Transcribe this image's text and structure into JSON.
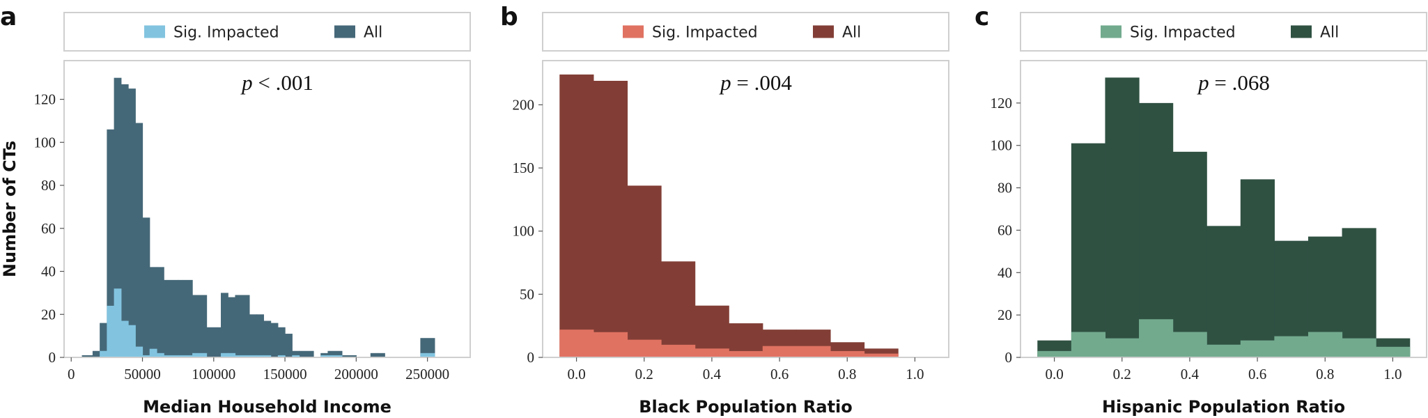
{
  "chart_data": [
    {
      "panel_letter": "a",
      "type": "histogram",
      "title": "",
      "xlabel": "Median Household Income",
      "ylabel": "Number of CTs",
      "annotation": {
        "italic": "p",
        "rest": " < .001"
      },
      "legend": {
        "placement": "top (outside, above plot)",
        "entries": [
          "Sig. Impacted",
          "All"
        ]
      },
      "colors": {
        "sig": "#82c4e0",
        "all": "#456878"
      },
      "xlim": [
        -5000,
        280000
      ],
      "ylim": [
        0,
        138
      ],
      "xticks": [
        0,
        50000,
        100000,
        150000,
        200000,
        250000
      ],
      "xtick_labels": [
        "0",
        "50000",
        "100000",
        "150000",
        "200000",
        "250000"
      ],
      "yticks": [
        0,
        20,
        40,
        60,
        80,
        100,
        120
      ],
      "ytick_labels": [
        "0",
        "20",
        "40",
        "60",
        "80",
        "100",
        "120"
      ],
      "bin_edges": [
        7500,
        15000,
        20000,
        25000,
        30000,
        35000,
        40000,
        45000,
        50000,
        55000,
        60000,
        65000,
        75000,
        85000,
        95000,
        105000,
        110000,
        115000,
        125000,
        130000,
        135000,
        140000,
        145000,
        150000,
        155000,
        160000,
        170000,
        175000,
        180000,
        190000,
        200000,
        210000,
        215000,
        220000,
        225000,
        230000,
        245000,
        255000
      ],
      "series": [
        {
          "name": "All",
          "values": [
            1,
            3,
            16,
            106,
            130,
            127,
            125,
            109,
            65,
            42,
            42,
            36,
            36,
            29,
            14,
            30,
            28,
            29,
            20,
            20,
            17,
            16,
            14,
            11,
            3,
            3,
            0,
            2,
            3,
            1,
            0,
            2,
            2,
            0,
            0,
            0,
            9
          ]
        },
        {
          "name": "Sig. Impacted",
          "values": [
            0,
            0,
            3,
            24,
            32,
            17,
            15,
            5,
            1,
            4,
            2,
            1,
            1,
            2,
            0,
            2,
            2,
            1,
            1,
            1,
            1,
            0,
            1,
            0,
            1,
            0,
            0,
            1,
            1,
            0,
            0,
            0,
            0,
            0,
            0,
            0,
            2
          ]
        }
      ]
    },
    {
      "panel_letter": "b",
      "type": "histogram",
      "title": "",
      "xlabel": "Black Population Ratio",
      "ylabel": "",
      "annotation": {
        "italic": "p",
        "rest": " = .004"
      },
      "legend": {
        "placement": "top (outside, above plot)",
        "entries": [
          "Sig. Impacted",
          "All"
        ]
      },
      "colors": {
        "sig": "#e07262",
        "all": "#823e36"
      },
      "xlim": [
        -0.1,
        1.1
      ],
      "ylim": [
        0,
        235
      ],
      "xticks": [
        0.0,
        0.2,
        0.4,
        0.6,
        0.8,
        1.0
      ],
      "xtick_labels": [
        "0.0",
        "0.2",
        "0.4",
        "0.6",
        "0.8",
        "1.0"
      ],
      "yticks": [
        0,
        50,
        100,
        150,
        200
      ],
      "ytick_labels": [
        "0",
        "50",
        "100",
        "150",
        "200"
      ],
      "bin_edges": [
        -0.05,
        0.05,
        0.15,
        0.25,
        0.35,
        0.45,
        0.55,
        0.65,
        0.75,
        0.85,
        0.95
      ],
      "series": [
        {
          "name": "All",
          "values": [
            224,
            219,
            136,
            76,
            41,
            27,
            22,
            22,
            12,
            7
          ]
        },
        {
          "name": "Sig. Impacted",
          "values": [
            22,
            20,
            14,
            10,
            7,
            5,
            9,
            9,
            5,
            3
          ]
        }
      ]
    },
    {
      "panel_letter": "c",
      "type": "histogram",
      "title": "",
      "xlabel": "Hispanic Population Ratio",
      "ylabel": "",
      "annotation": {
        "italic": "p",
        "rest": " = .068"
      },
      "legend": {
        "placement": "top (outside, above plot)",
        "entries": [
          "Sig. Impacted",
          "All"
        ]
      },
      "colors": {
        "sig": "#72aa8e",
        "all": "#2f5142"
      },
      "xlim": [
        -0.1,
        1.1
      ],
      "ylim": [
        0,
        140
      ],
      "xticks": [
        0.0,
        0.2,
        0.4,
        0.6,
        0.8,
        1.0
      ],
      "xtick_labels": [
        "0.0",
        "0.2",
        "0.4",
        "0.6",
        "0.8",
        "1.0"
      ],
      "yticks": [
        0,
        20,
        40,
        60,
        80,
        100,
        120
      ],
      "ytick_labels": [
        "0",
        "20",
        "40",
        "60",
        "80",
        "100",
        "120"
      ],
      "bin_edges": [
        -0.05,
        0.05,
        0.15,
        0.25,
        0.35,
        0.45,
        0.55,
        0.65,
        0.75,
        0.85,
        0.95,
        1.05
      ],
      "series": [
        {
          "name": "All",
          "values": [
            8,
            101,
            132,
            120,
            97,
            62,
            84,
            55,
            57,
            61,
            9
          ]
        },
        {
          "name": "Sig. Impacted",
          "values": [
            3,
            12,
            9,
            18,
            12,
            6,
            8,
            10,
            12,
            9,
            5
          ]
        }
      ]
    }
  ]
}
